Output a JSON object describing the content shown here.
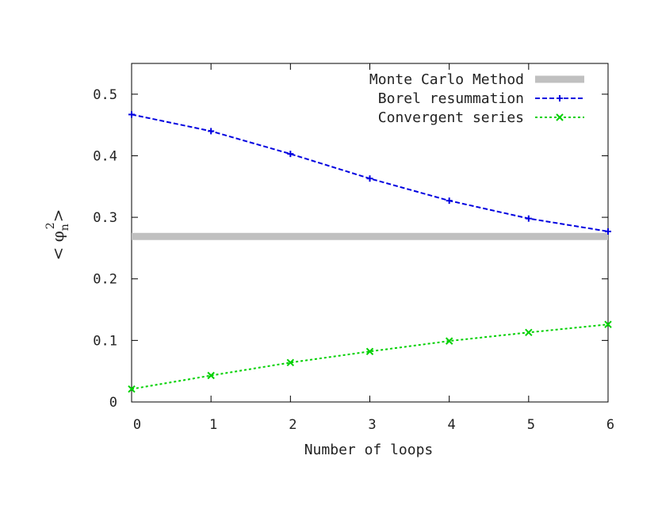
{
  "chart_data": {
    "type": "line",
    "title": "",
    "xlabel": "Number of loops",
    "ylabel": {
      "base": "< φ",
      "subscript": "n",
      "superscript": "2",
      "close": ">"
    },
    "xlim": [
      0,
      6
    ],
    "ylim": [
      0,
      0.55
    ],
    "xticks": [
      0,
      1,
      2,
      3,
      4,
      5,
      6
    ],
    "yticks": [
      0,
      0.1,
      0.2,
      0.3,
      0.4,
      0.5
    ],
    "xtick_labels": [
      "0",
      "1",
      "2",
      "3",
      "4",
      "5",
      "6"
    ],
    "ytick_labels": [
      "0",
      "0.1",
      "0.2",
      "0.3",
      "0.4",
      "0.5"
    ],
    "grid": false,
    "legend_position": "top-right",
    "series": [
      {
        "name": "Monte Carlo Method",
        "style": "thick-solid",
        "color": "#c0c0c0",
        "x": [
          0,
          6
        ],
        "y": [
          0.269,
          0.269
        ]
      },
      {
        "name": "Borel resummation",
        "style": "dashed",
        "marker": "plus",
        "color": "#0000e0",
        "x": [
          0,
          1,
          2,
          3,
          4,
          5,
          6
        ],
        "y": [
          0.467,
          0.44,
          0.403,
          0.363,
          0.327,
          0.298,
          0.277
        ]
      },
      {
        "name": "Convergent series",
        "style": "dotted",
        "marker": "x",
        "color": "#00d000",
        "x": [
          0,
          1,
          2,
          3,
          4,
          5,
          6
        ],
        "y": [
          0.021,
          0.043,
          0.064,
          0.082,
          0.099,
          0.113,
          0.126
        ]
      }
    ]
  }
}
